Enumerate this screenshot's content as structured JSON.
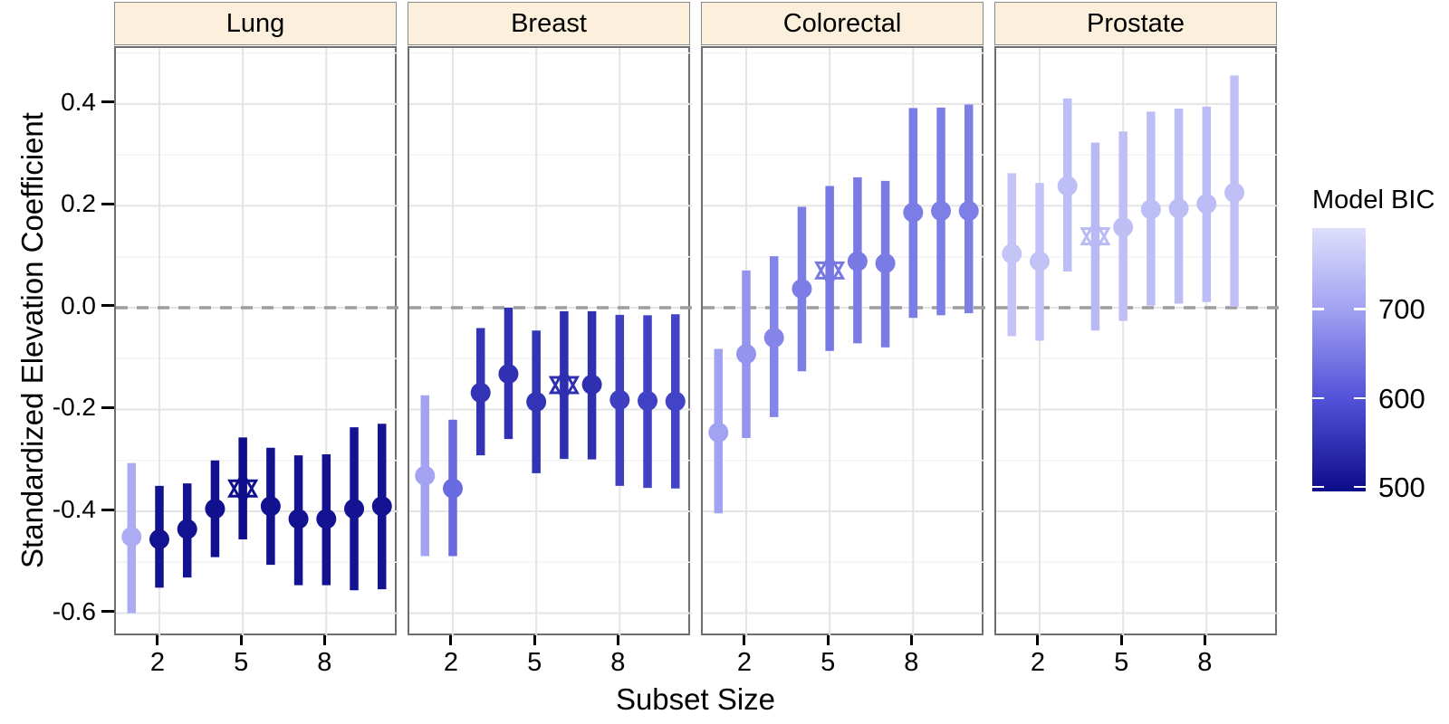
{
  "chart_data": {
    "type": "pointrange",
    "xlabel": "Subset Size",
    "ylabel": "Standardized Elevation Coefficient",
    "x_ticks": [
      2,
      5,
      8
    ],
    "x_tick_labels": [
      "2",
      "5",
      "8"
    ],
    "y_ticks": [
      0.4,
      0.2,
      0.0,
      -0.2,
      -0.4,
      -0.6
    ],
    "y_tick_labels": [
      "0.4",
      "0.2",
      "0.0",
      "-0.2",
      "-0.4",
      "-0.6"
    ],
    "y_minor_ticks": [
      0.5,
      0.3,
      0.1,
      -0.1,
      -0.3,
      -0.5
    ],
    "xlim": [
      0.4375,
      10.594
    ],
    "ylim": [
      -0.647,
      0.51
    ],
    "reference_line_y": 0,
    "marker_meaning": "star marks selected best model (lowest BIC) per facet",
    "facets": [
      {
        "label": "Lung",
        "marked_x": 5,
        "points": [
          {
            "x": 1,
            "est": -0.45,
            "lo": -0.6,
            "hi": -0.305,
            "bic": 715
          },
          {
            "x": 2,
            "est": -0.455,
            "lo": -0.55,
            "hi": -0.35,
            "bic": 506
          },
          {
            "x": 3,
            "est": -0.435,
            "lo": -0.53,
            "hi": -0.345,
            "bic": 505
          },
          {
            "x": 4,
            "est": -0.395,
            "lo": -0.49,
            "hi": -0.3,
            "bic": 503
          },
          {
            "x": 5,
            "est": -0.355,
            "lo": -0.455,
            "hi": -0.255,
            "bic": 500
          },
          {
            "x": 6,
            "est": -0.39,
            "lo": -0.505,
            "hi": -0.275,
            "bic": 504
          },
          {
            "x": 7,
            "est": -0.415,
            "lo": -0.545,
            "hi": -0.29,
            "bic": 505
          },
          {
            "x": 8,
            "est": -0.415,
            "lo": -0.545,
            "hi": -0.288,
            "bic": 505
          },
          {
            "x": 9,
            "est": -0.395,
            "lo": -0.555,
            "hi": -0.235,
            "bic": 507
          },
          {
            "x": 10,
            "est": -0.39,
            "lo": -0.553,
            "hi": -0.228,
            "bic": 507
          }
        ]
      },
      {
        "label": "Breast",
        "marked_x": 6,
        "points": [
          {
            "x": 1,
            "est": -0.33,
            "lo": -0.488,
            "hi": -0.172,
            "bic": 702
          },
          {
            "x": 2,
            "est": -0.355,
            "lo": -0.488,
            "hi": -0.22,
            "bic": 630
          },
          {
            "x": 3,
            "est": -0.167,
            "lo": -0.29,
            "hi": -0.04,
            "bic": 552
          },
          {
            "x": 4,
            "est": -0.13,
            "lo": -0.258,
            "hi": 0.0,
            "bic": 548
          },
          {
            "x": 5,
            "est": -0.185,
            "lo": -0.325,
            "hi": -0.045,
            "bic": 553
          },
          {
            "x": 6,
            "est": -0.152,
            "lo": -0.297,
            "hi": -0.007,
            "bic": 545
          },
          {
            "x": 7,
            "est": -0.151,
            "lo": -0.298,
            "hi": -0.007,
            "bic": 547
          },
          {
            "x": 8,
            "est": -0.181,
            "lo": -0.35,
            "hi": -0.014,
            "bic": 570
          },
          {
            "x": 9,
            "est": -0.183,
            "lo": -0.354,
            "hi": -0.015,
            "bic": 574
          },
          {
            "x": 10,
            "est": -0.184,
            "lo": -0.355,
            "hi": -0.013,
            "bic": 576
          }
        ]
      },
      {
        "label": "Colorectal",
        "marked_x": 5,
        "points": [
          {
            "x": 1,
            "est": -0.245,
            "lo": -0.404,
            "hi": -0.081,
            "bic": 700
          },
          {
            "x": 2,
            "est": -0.091,
            "lo": -0.256,
            "hi": 0.073,
            "bic": 682
          },
          {
            "x": 3,
            "est": -0.059,
            "lo": -0.215,
            "hi": 0.101,
            "bic": 663
          },
          {
            "x": 4,
            "est": 0.037,
            "lo": -0.125,
            "hi": 0.198,
            "bic": 653
          },
          {
            "x": 5,
            "est": 0.073,
            "lo": -0.085,
            "hi": 0.239,
            "bic": 645
          },
          {
            "x": 6,
            "est": 0.091,
            "lo": -0.07,
            "hi": 0.256,
            "bic": 649
          },
          {
            "x": 7,
            "est": 0.087,
            "lo": -0.078,
            "hi": 0.249,
            "bic": 650
          },
          {
            "x": 8,
            "est": 0.187,
            "lo": -0.02,
            "hi": 0.392,
            "bic": 652
          },
          {
            "x": 9,
            "est": 0.19,
            "lo": -0.015,
            "hi": 0.393,
            "bic": 654
          },
          {
            "x": 10,
            "est": 0.19,
            "lo": -0.011,
            "hi": 0.399,
            "bic": 655
          }
        ]
      },
      {
        "label": "Prostate",
        "marked_x": 4,
        "points": [
          {
            "x": 1,
            "est": 0.106,
            "lo": -0.056,
            "hi": 0.264,
            "bic": 752
          },
          {
            "x": 2,
            "est": 0.091,
            "lo": -0.065,
            "hi": 0.245,
            "bic": 749
          },
          {
            "x": 3,
            "est": 0.239,
            "lo": 0.071,
            "hi": 0.411,
            "bic": 742
          },
          {
            "x": 4,
            "est": 0.14,
            "lo": -0.045,
            "hi": 0.324,
            "bic": 735
          },
          {
            "x": 5,
            "est": 0.158,
            "lo": -0.026,
            "hi": 0.346,
            "bic": 744
          },
          {
            "x": 6,
            "est": 0.193,
            "lo": 0.004,
            "hi": 0.385,
            "bic": 743
          },
          {
            "x": 7,
            "est": 0.195,
            "lo": 0.008,
            "hi": 0.391,
            "bic": 741
          },
          {
            "x": 8,
            "est": 0.204,
            "lo": 0.011,
            "hi": 0.395,
            "bic": 740
          },
          {
            "x": 9,
            "est": 0.226,
            "lo": 0.002,
            "hi": 0.456,
            "bic": 745
          }
        ]
      }
    ],
    "legend": {
      "title": "Model BIC",
      "ticks": [
        700,
        600,
        500
      ],
      "tick_labels": [
        "700",
        "600",
        "500"
      ],
      "value_range": [
        791,
        495
      ],
      "gradient_stops": [
        {
          "value": 791,
          "color": "#dedefb"
        },
        {
          "value": 700,
          "color": "#a2a2f2"
        },
        {
          "value": 600,
          "color": "#5353d9"
        },
        {
          "value": 495,
          "color": "#0c0c8a"
        }
      ],
      "position": "right"
    },
    "grid": "major and minor horizontal, major vertical at x ticks"
  },
  "colors": {
    "background": "#ffffff",
    "strip_fill": "#fcf0dc",
    "strip_border": "#8a8a8a",
    "panel_border": "#6e6e6e",
    "grid_major": "#e4e4e4",
    "grid_minor": "#f3f3f3",
    "zero_line": "#9e9e9e",
    "text": "#000000"
  }
}
